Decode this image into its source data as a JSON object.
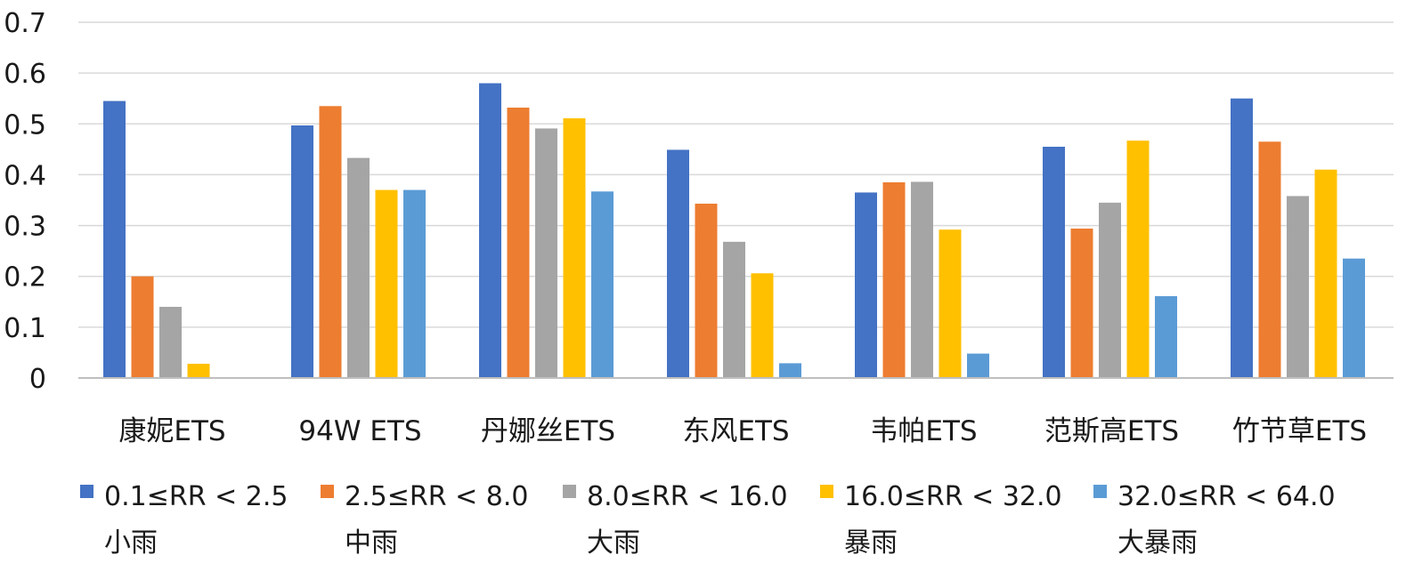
{
  "chart_data": {
    "type": "bar",
    "title": "",
    "xlabel": "",
    "ylabel": "",
    "ylim": [
      0,
      0.7
    ],
    "yticks": [
      "0",
      "0.1",
      "0.2",
      "0.3",
      "0.4",
      "0.5",
      "0.6",
      "0.7"
    ],
    "grid": true,
    "legend_position": "bottom",
    "categories": [
      "康妮ETS",
      "94W ETS",
      "丹娜丝ETS",
      "东风ETS",
      "韦帕ETS",
      "范斯高ETS",
      "竹节草ETS"
    ],
    "series": [
      {
        "name": "0.1≤RR < 2.5 小雨",
        "legend_line1": "0.1≤RR < 2.5",
        "legend_line2": "小雨",
        "color": "#4472C4",
        "values": [
          0.545,
          0.497,
          0.58,
          0.449,
          0.365,
          0.455,
          0.55
        ]
      },
      {
        "name": "2.5≤RR < 8.0 中雨",
        "legend_line1": "2.5≤RR < 8.0",
        "legend_line2": "中雨",
        "color": "#ED7D31",
        "values": [
          0.2,
          0.535,
          0.532,
          0.343,
          0.385,
          0.294,
          0.465
        ]
      },
      {
        "name": "8.0≤RR < 16.0 大雨",
        "legend_line1": "8.0≤RR < 16.0",
        "legend_line2": "大雨",
        "color": "#A5A5A5",
        "values": [
          0.14,
          0.433,
          0.491,
          0.268,
          0.386,
          0.345,
          0.358
        ]
      },
      {
        "name": "16.0≤RR < 32.0 暴雨",
        "legend_line1": "16.0≤RR < 32.0",
        "legend_line2": "暴雨",
        "color": "#FFC000",
        "values": [
          0.028,
          0.37,
          0.511,
          0.206,
          0.292,
          0.467,
          0.41
        ]
      },
      {
        "name": "32.0≤RR < 64.0 大暴雨",
        "legend_line1": "32.0≤RR < 64.0",
        "legend_line2": "大暴雨",
        "color": "#5B9BD5",
        "values": [
          0.0,
          0.37,
          0.367,
          0.029,
          0.048,
          0.161,
          0.235
        ]
      }
    ]
  }
}
